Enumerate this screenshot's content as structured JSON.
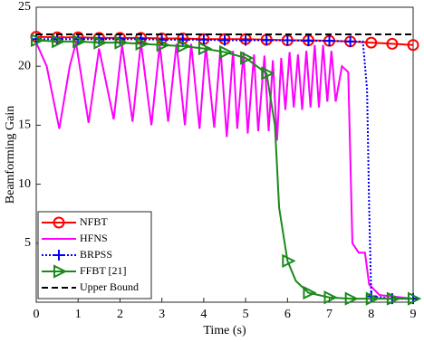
{
  "chart_data": {
    "type": "line",
    "xlabel": "Time (s)",
    "ylabel": "Beamforming Gain",
    "xlim": [
      0,
      9
    ],
    "ylim": [
      0,
      25
    ],
    "xticks": [
      0,
      1,
      2,
      3,
      4,
      5,
      6,
      7,
      8,
      9
    ],
    "yticks": [
      5,
      10,
      15,
      20,
      25
    ],
    "legend": "lower left",
    "series": [
      {
        "name": "NFBT",
        "color": "#ff0000",
        "style": "solid",
        "marker": "circle",
        "x": [
          0,
          0.5,
          1,
          1.5,
          2,
          2.5,
          3,
          3.5,
          4,
          4.5,
          5,
          5.5,
          6,
          6.5,
          7,
          7.5,
          8,
          8.5,
          9
        ],
        "values": [
          22.5,
          22.45,
          22.45,
          22.4,
          22.4,
          22.4,
          22.35,
          22.35,
          22.3,
          22.3,
          22.3,
          22.25,
          22.2,
          22.2,
          22.15,
          22.1,
          22.0,
          21.9,
          21.8
        ]
      },
      {
        "name": "HFNS",
        "color": "#ff00ff",
        "style": "solid",
        "marker": "none",
        "x": [
          0,
          0.25,
          0.55,
          0.8,
          0.95,
          1.25,
          1.5,
          1.85,
          2.05,
          2.3,
          2.5,
          2.75,
          2.95,
          3.15,
          3.35,
          3.55,
          3.7,
          3.9,
          4.05,
          4.25,
          4.4,
          4.55,
          4.7,
          4.8,
          4.95,
          5.05,
          5.2,
          5.3,
          5.45,
          5.55,
          5.65,
          5.75,
          5.85,
          5.95,
          6.05,
          6.15,
          6.25,
          6.35,
          6.45,
          6.55,
          6.65,
          6.75,
          6.85,
          6.95,
          7.05,
          7.15,
          7.3,
          7.45,
          7.55,
          7.7,
          7.85,
          7.95,
          8.2,
          9
        ],
        "values": [
          22,
          20,
          14.7,
          20,
          22,
          15.2,
          21.5,
          15.5,
          21.8,
          15.3,
          22,
          15.0,
          21.8,
          15.3,
          21.9,
          15.0,
          21.9,
          14.7,
          21.7,
          14.8,
          21.5,
          14.0,
          21.3,
          14.7,
          21.2,
          14.3,
          21.0,
          14.5,
          20.9,
          14.5,
          20.5,
          13.7,
          20.7,
          16.3,
          21.2,
          16.5,
          21.0,
          16.3,
          21.3,
          16.5,
          21.8,
          16.5,
          21.8,
          17.0,
          21.3,
          17.0,
          20.0,
          19.5,
          5.0,
          4.2,
          4.2,
          1.5,
          0.6,
          0.3
        ]
      },
      {
        "name": "BRPSS",
        "color": "#0000ff",
        "style": "dotted",
        "marker": "plus",
        "x": [
          0,
          0.5,
          1,
          1.5,
          2,
          2.5,
          3,
          3.5,
          4,
          4.5,
          5,
          5.5,
          6,
          6.5,
          7,
          7.5,
          7.8,
          7.9,
          7.95,
          8,
          8.5,
          9
        ],
        "values": [
          22.3,
          22.3,
          22.3,
          22.3,
          22.3,
          22.3,
          22.25,
          22.25,
          22.25,
          22.2,
          22.2,
          22.2,
          22.2,
          22.15,
          22.15,
          22.1,
          22.1,
          18,
          8,
          0.5,
          0.3,
          0.3
        ]
      },
      {
        "name": "FFBT [21]",
        "color": "#1a8a1a",
        "style": "solid",
        "marker": "triangle",
        "x": [
          0,
          0.5,
          1,
          1.5,
          2,
          2.5,
          3,
          3.5,
          4,
          4.5,
          5,
          5.5,
          5.7,
          5.8,
          6,
          6.2,
          6.5,
          7,
          7.5,
          8,
          8.5,
          9
        ],
        "values": [
          22.2,
          22.1,
          22.1,
          22.0,
          22.0,
          21.9,
          21.8,
          21.7,
          21.5,
          21.2,
          20.7,
          19.4,
          15,
          8,
          3.5,
          1.8,
          0.8,
          0.4,
          0.3,
          0.3,
          0.3,
          0.3
        ]
      },
      {
        "name": "Upper Bound",
        "color": "#000000",
        "style": "dashed",
        "marker": "none",
        "x": [
          0,
          9
        ],
        "values": [
          22.7,
          22.7
        ]
      }
    ]
  }
}
